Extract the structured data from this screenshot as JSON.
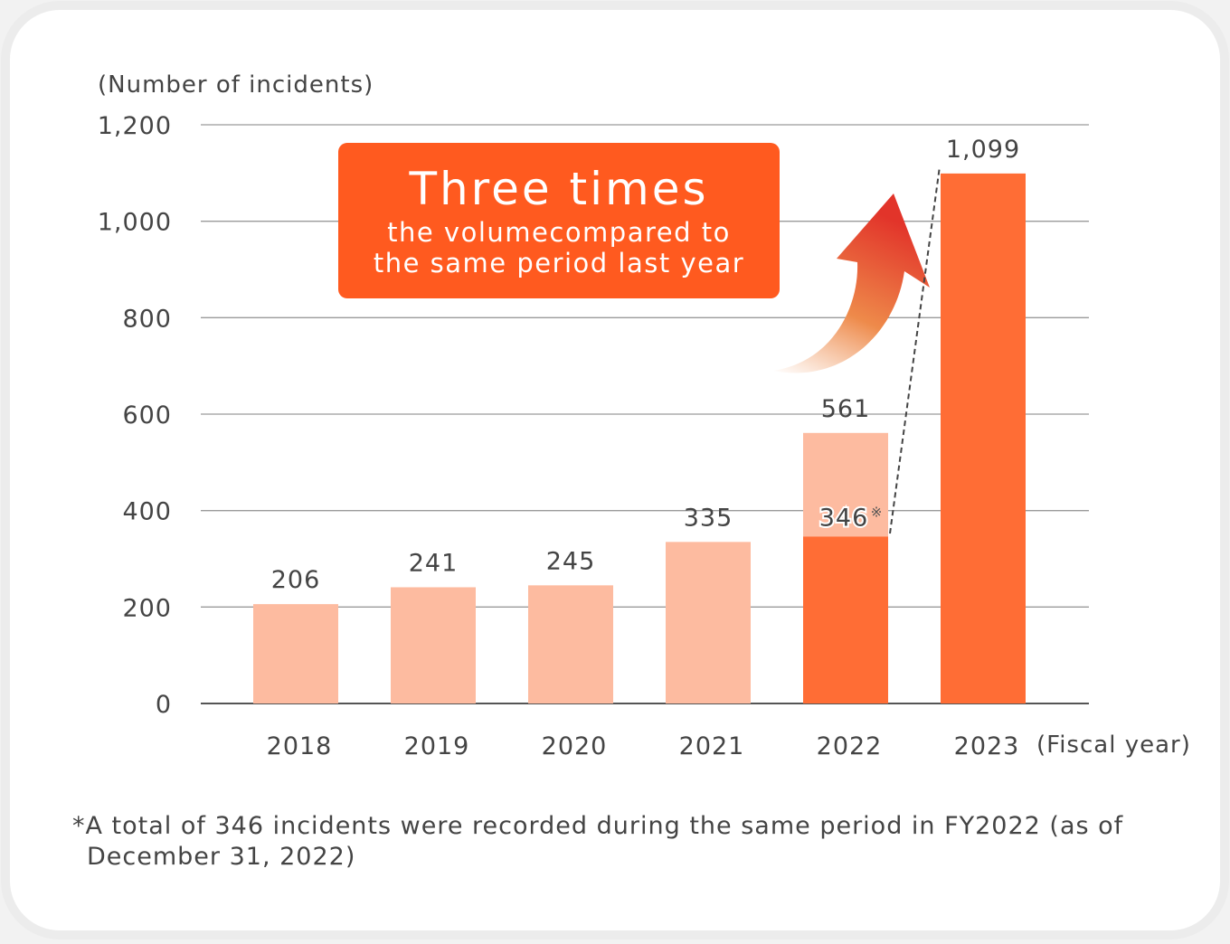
{
  "chart_data": {
    "type": "bar",
    "ylabel": "(Number of incidents)",
    "xlabel": "(Fiscal year)",
    "ylim": [
      0,
      1200
    ],
    "yticks": [
      0,
      200,
      400,
      600,
      800,
      1000,
      1200
    ],
    "ytick_labels": [
      "0",
      "200",
      "400",
      "600",
      "800",
      "1,000",
      "1,200"
    ],
    "grid": true,
    "categories": [
      "2018",
      "2019",
      "2020",
      "2021",
      "2022",
      "2023"
    ],
    "values": [
      206,
      241,
      245,
      335,
      561,
      1099
    ],
    "value_labels": [
      "206",
      "241",
      "245",
      "335",
      "561",
      "1,099"
    ],
    "same_period_2022": {
      "value": 346,
      "label": "346",
      "mark": "※"
    },
    "colors": {
      "light": "#fdbba0",
      "dark": "#ff6d35",
      "callout": "#ff5a1f",
      "grid": "#9a9a9a",
      "text": "#444444"
    },
    "callout": {
      "title": "Three times",
      "line1": "the volumecompared to",
      "line2": "the same period last year"
    },
    "footnote": {
      "line1": "*A total of 346 incidents were recorded during the same period in FY2022 (as of",
      "line2": "December 31, 2022)"
    }
  }
}
